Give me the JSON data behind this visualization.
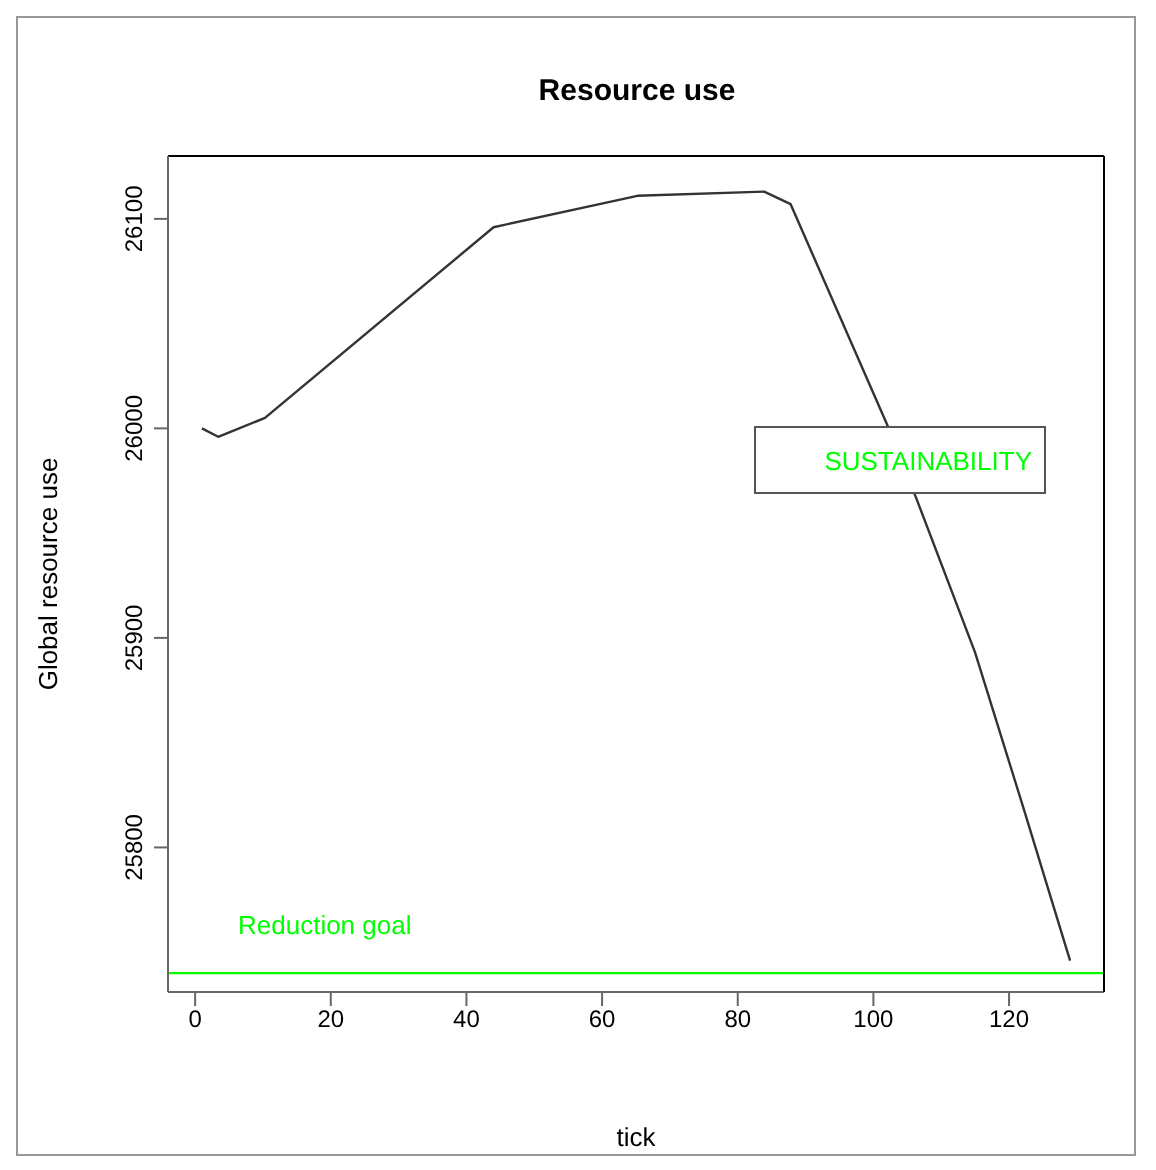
{
  "chart_data": {
    "type": "line",
    "title": "Resource use",
    "xlabel": "tick",
    "ylabel": "Global resource use",
    "x": [
      1,
      3.4,
      10.3,
      44,
      65.2,
      83.9,
      87.8,
      102,
      106.4,
      115,
      122.3,
      129
    ],
    "series": [
      {
        "color": "#333333",
        "values": [
          26000,
          25996,
          26005,
          26096,
          26111,
          26113,
          26107,
          26002,
          25966,
          25893,
          25817,
          25746
        ]
      }
    ],
    "xlim": [
      -4,
      134
    ],
    "ylim": [
      25731,
      26130
    ],
    "xticks": [
      0,
      20,
      40,
      60,
      80,
      100,
      120
    ],
    "yticks": [
      25800,
      25900,
      26000,
      26100
    ],
    "grid": false,
    "legend": false,
    "marker": "none",
    "line_style": "solid",
    "ref_lines": [
      {
        "axis": "y",
        "value": 25740,
        "label": "Reduction goal",
        "color": "#00ff00"
      }
    ],
    "annotations": [
      "SUSTAINABILITY"
    ]
  }
}
